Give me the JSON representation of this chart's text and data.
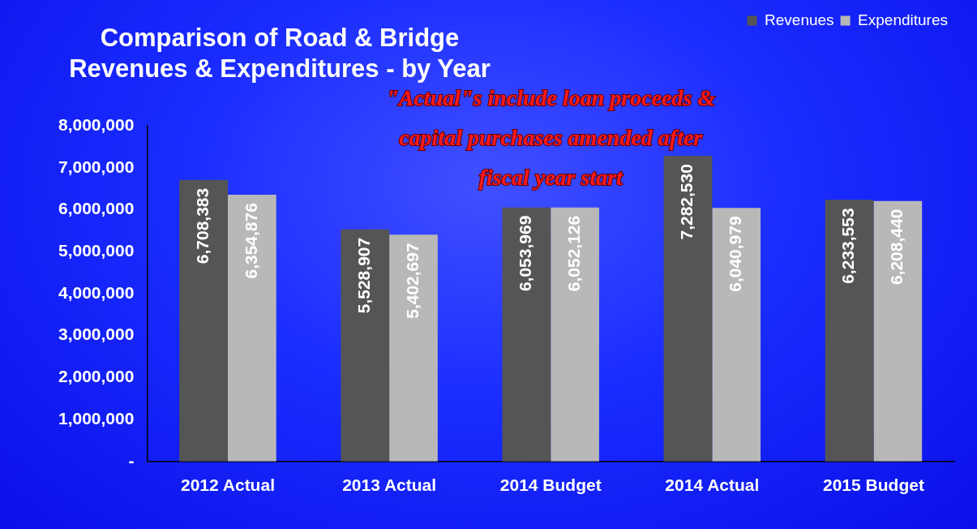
{
  "chart_data": {
    "type": "bar",
    "title": "Comparison of Road & Bridge Revenues & Expenditures - by Year",
    "categories": [
      "2012 Actual",
      "2013 Actual",
      "2014 Budget",
      "2014 Actual",
      "2015 Budget"
    ],
    "series": [
      {
        "name": "Revenues",
        "color": "#555555",
        "values": [
          6708383,
          5528907,
          6053969,
          7282530,
          6233553
        ],
        "value_labels": [
          "6,708,383",
          "5,528,907",
          "6,053,969",
          "7,282,530",
          "6,233,553"
        ]
      },
      {
        "name": "Expenditures",
        "color": "#b8b8b8",
        "values": [
          6354876,
          5402697,
          6052126,
          6040979,
          6208440
        ],
        "value_labels": [
          "6,354,876",
          "5,402,697",
          "6,052,126",
          "6,040,979",
          "6,208,440"
        ]
      }
    ],
    "ylim": [
      0,
      8000000
    ],
    "yticks": [
      {
        "value": 0,
        "label": "-"
      },
      {
        "value": 1000000,
        "label": "1,000,000"
      },
      {
        "value": 2000000,
        "label": "2,000,000"
      },
      {
        "value": 3000000,
        "label": "3,000,000"
      },
      {
        "value": 4000000,
        "label": "4,000,000"
      },
      {
        "value": 5000000,
        "label": "5,000,000"
      },
      {
        "value": 6000000,
        "label": "6,000,000"
      },
      {
        "value": 7000000,
        "label": "7,000,000"
      },
      {
        "value": 8000000,
        "label": "8,000,000"
      }
    ],
    "grid": false,
    "legend": "top right",
    "annotations": [
      "\"Actual\"s include loan proceeds & capital purchases amended after fiscal year start"
    ]
  }
}
